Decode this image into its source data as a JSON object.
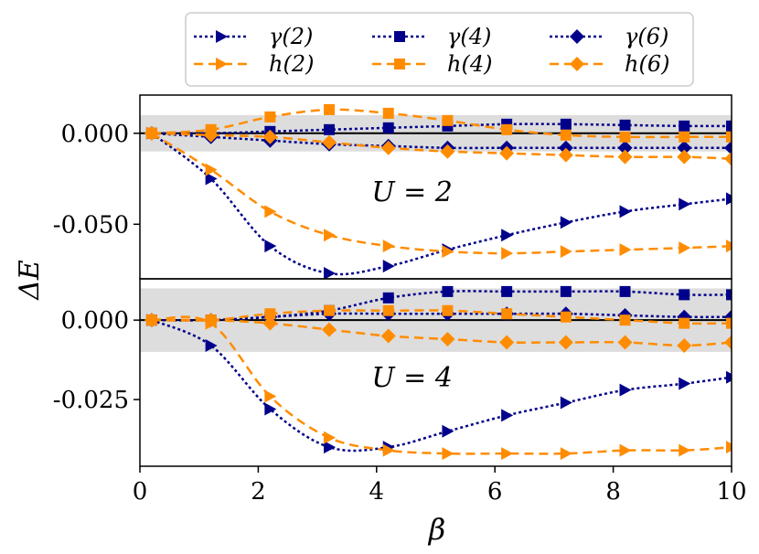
{
  "chart_data": {
    "type": "line",
    "colors": {
      "gamma": "#00008b",
      "h": "#ff8c00",
      "band": "#dddddd",
      "zero_line": "#000000"
    },
    "x": [
      0.2,
      1.2,
      2.2,
      3.2,
      4.2,
      5.2,
      6.2,
      7.2,
      8.2,
      9.2,
      10.0
    ],
    "xlabel": "β",
    "xlim": [
      0,
      10
    ],
    "xticks": [
      0,
      2,
      4,
      6,
      8,
      10
    ],
    "xtick_labels": [
      "0",
      "2",
      "4",
      "6",
      "8",
      "10"
    ],
    "ylabel": "ΔE",
    "legend": {
      "position": "top",
      "entries": [
        {
          "label": "γ(2)",
          "family": "gamma",
          "marker": "triangle-right"
        },
        {
          "label": "γ(4)",
          "family": "gamma",
          "marker": "square"
        },
        {
          "label": "γ(6)",
          "family": "gamma",
          "marker": "diamond"
        },
        {
          "label": "h(2)",
          "family": "h",
          "marker": "triangle-right"
        },
        {
          "label": "h(4)",
          "family": "h",
          "marker": "square"
        },
        {
          "label": "h(6)",
          "family": "h",
          "marker": "diamond"
        }
      ]
    },
    "panels": [
      {
        "annotation": "U = 2",
        "ylim": [
          -0.08,
          0.021
        ],
        "yticks": [
          0.0,
          -0.05
        ],
        "ytick_labels": [
          "0.000",
          "-0.050"
        ],
        "band": [
          -0.01,
          0.01
        ],
        "series": [
          {
            "name": "γ(2)",
            "family": "gamma",
            "marker": "triangle-right",
            "values": [
              0.0,
              -0.025,
              -0.062,
              -0.077,
              -0.073,
              -0.064,
              -0.056,
              -0.049,
              -0.043,
              -0.039,
              -0.036
            ]
          },
          {
            "name": "γ(4)",
            "family": "gamma",
            "marker": "square",
            "values": [
              0.0,
              0.0,
              0.001,
              0.002,
              0.003,
              0.004,
              0.005,
              0.005,
              0.0045,
              0.004,
              0.004
            ]
          },
          {
            "name": "γ(6)",
            "family": "gamma",
            "marker": "diamond",
            "values": [
              0.0,
              -0.002,
              -0.004,
              -0.006,
              -0.007,
              -0.008,
              -0.008,
              -0.008,
              -0.008,
              -0.008,
              -0.008
            ]
          },
          {
            "name": "h(2)",
            "family": "h",
            "marker": "triangle-right",
            "values": [
              0.0,
              -0.02,
              -0.043,
              -0.056,
              -0.062,
              -0.065,
              -0.066,
              -0.065,
              -0.064,
              -0.063,
              -0.062
            ]
          },
          {
            "name": "h(4)",
            "family": "h",
            "marker": "square",
            "values": [
              0.0,
              0.002,
              0.009,
              0.013,
              0.011,
              0.007,
              0.002,
              -0.001,
              -0.002,
              -0.002,
              -0.002
            ]
          },
          {
            "name": "h(6)",
            "family": "h",
            "marker": "diamond",
            "values": [
              0.0,
              -0.001,
              -0.002,
              -0.005,
              -0.008,
              -0.01,
              -0.011,
              -0.012,
              -0.013,
              -0.013,
              -0.014
            ]
          }
        ]
      },
      {
        "annotation": "U = 4",
        "ylim": [
          -0.046,
          0.013
        ],
        "yticks": [
          0.0,
          -0.025
        ],
        "ytick_labels": [
          "0.000",
          "-0.025"
        ],
        "band": [
          -0.01,
          0.01
        ],
        "series": [
          {
            "name": "γ(2)",
            "family": "gamma",
            "marker": "triangle-right",
            "values": [
              0.0,
              -0.008,
              -0.028,
              -0.04,
              -0.04,
              -0.035,
              -0.03,
              -0.026,
              -0.022,
              -0.02,
              -0.018
            ]
          },
          {
            "name": "γ(4)",
            "family": "gamma",
            "marker": "square",
            "values": [
              0.0,
              0.0,
              0.001,
              0.003,
              0.007,
              0.009,
              0.009,
              0.009,
              0.009,
              0.008,
              0.008
            ]
          },
          {
            "name": "γ(6)",
            "family": "gamma",
            "marker": "diamond",
            "values": [
              0.0,
              0.0,
              0.001,
              0.002,
              0.002,
              0.002,
              0.002,
              0.002,
              0.0015,
              0.001,
              0.001
            ]
          },
          {
            "name": "h(2)",
            "family": "h",
            "marker": "triangle-right",
            "values": [
              0.0,
              -0.001,
              -0.024,
              -0.037,
              -0.041,
              -0.042,
              -0.042,
              -0.042,
              -0.041,
              -0.041,
              -0.04
            ]
          },
          {
            "name": "h(4)",
            "family": "h",
            "marker": "square",
            "values": [
              0.0,
              0.0,
              0.002,
              0.003,
              0.003,
              0.003,
              0.002,
              0.001,
              0.0,
              -0.001,
              -0.001
            ]
          },
          {
            "name": "h(6)",
            "family": "h",
            "marker": "diamond",
            "values": [
              0.0,
              0.0,
              -0.001,
              -0.003,
              -0.005,
              -0.006,
              -0.007,
              -0.007,
              -0.007,
              -0.008,
              -0.007
            ]
          }
        ]
      }
    ]
  }
}
